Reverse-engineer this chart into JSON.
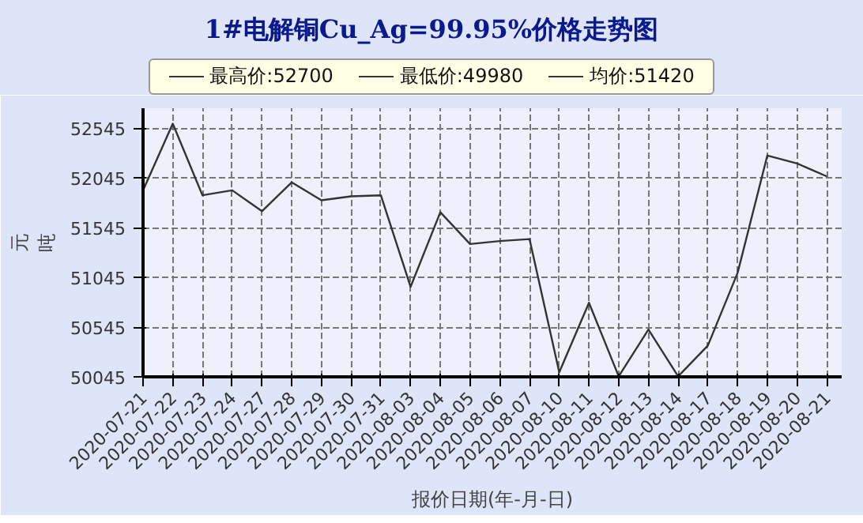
{
  "chart_data": {
    "type": "line",
    "title": "1#电解铜Cu_Ag=99.95%价格走势图",
    "xlabel": "报价日期(年-月-日)",
    "ylabel": "元吨",
    "annotations": [
      "最高价:52700",
      "最低价:49980",
      "均价:51420"
    ],
    "categories": [
      "2020-07-21",
      "2020-07-22",
      "2020-07-23",
      "2020-07-24",
      "2020-07-27",
      "2020-07-28",
      "2020-07-29",
      "2020-07-30",
      "2020-07-31",
      "2020-08-03",
      "2020-08-04",
      "2020-08-05",
      "2020-08-06",
      "2020-08-07",
      "2020-08-10",
      "2020-08-11",
      "2020-08-12",
      "2020-08-13",
      "2020-08-14",
      "2020-08-17",
      "2020-08-18",
      "2020-08-19",
      "2020-08-20",
      "2020-08-21"
    ],
    "series": [
      {
        "color": "#333333",
        "values": [
          51920,
          52590,
          51870,
          51920,
          51710,
          52000,
          51820,
          51860,
          51870,
          50950,
          51700,
          51380,
          51410,
          51430,
          50090,
          50790,
          50050,
          50520,
          50050,
          50360,
          51090,
          52270,
          52190,
          52060
        ]
      }
    ],
    "ylim": [
      50045,
      52745
    ],
    "yticks": [
      50045,
      50545,
      51045,
      51545,
      52045,
      52545
    ],
    "grid": true,
    "line_style": "solid"
  }
}
